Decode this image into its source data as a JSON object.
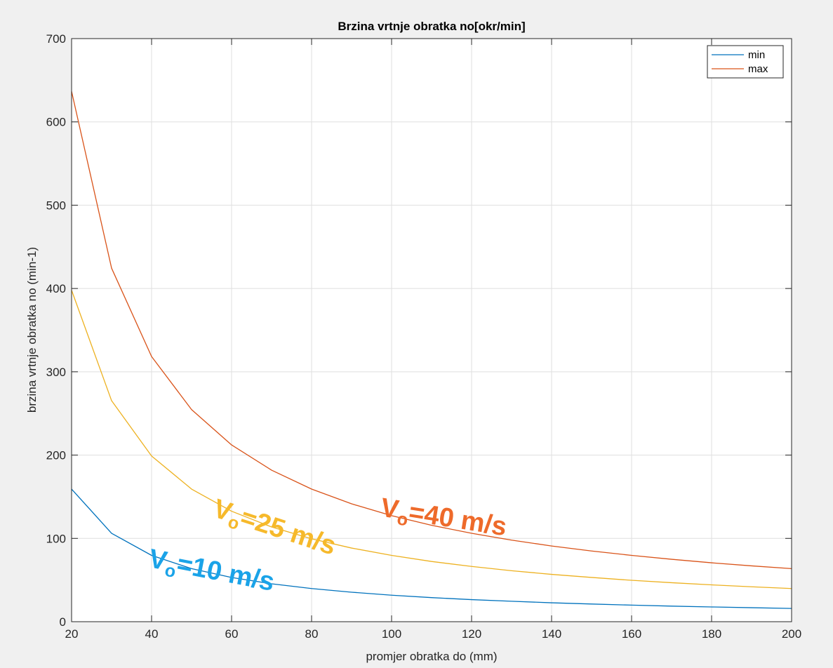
{
  "chart_data": {
    "type": "line",
    "title": "Brzina vrtnje obratka no[okr/min]",
    "xlabel": "promjer obratka do (mm)",
    "ylabel": "brzina vrtnje obratka no (min-1)",
    "xlim": [
      20,
      200
    ],
    "ylim": [
      0,
      700
    ],
    "xticks": [
      20,
      40,
      60,
      80,
      100,
      120,
      140,
      160,
      180,
      200
    ],
    "yticks": [
      0,
      100,
      200,
      300,
      400,
      500,
      600,
      700
    ],
    "xtick_labels": [
      "20",
      "40",
      "60",
      "80",
      "100",
      "120",
      "140",
      "160",
      "180",
      "200"
    ],
    "ytick_labels": [
      "0",
      "100",
      "200",
      "300",
      "400",
      "500",
      "600",
      "700"
    ],
    "grid": true,
    "legend_position": "top-right",
    "x": [
      20,
      30,
      40,
      50,
      60,
      70,
      80,
      90,
      100,
      110,
      120,
      130,
      140,
      150,
      160,
      170,
      180,
      190,
      200
    ],
    "series": [
      {
        "name": "min",
        "color": "#0072BD",
        "values": [
          159.2,
          106.1,
          79.6,
          63.7,
          53.1,
          45.5,
          39.8,
          35.4,
          31.8,
          28.9,
          26.5,
          24.5,
          22.7,
          21.2,
          19.9,
          18.7,
          17.7,
          16.8,
          15.9
        ]
      },
      {
        "name": "max",
        "color": "#D95319",
        "values": [
          636.6,
          424.4,
          318.3,
          254.6,
          212.2,
          181.9,
          159.2,
          141.5,
          127.3,
          115.7,
          106.1,
          97.9,
          90.9,
          84.9,
          79.6,
          74.9,
          70.7,
          67.0,
          63.7
        ]
      },
      {
        "color": "#EDB120",
        "values": [
          397.9,
          265.3,
          198.9,
          159.2,
          132.6,
          113.7,
          99.5,
          88.4,
          79.6,
          72.3,
          66.3,
          61.2,
          56.8,
          53.1,
          49.7,
          46.8,
          44.2,
          41.9,
          39.8
        ]
      }
    ],
    "annotations": [
      {
        "prefix": "V",
        "subscript": "o",
        "text": "=10 m/s",
        "color": "#1aa3e8",
        "x": 39,
        "y": 66,
        "angle": 11
      },
      {
        "prefix": "V",
        "subscript": "o",
        "text": "=25 m/s",
        "color": "#f6b92b",
        "x": 55,
        "y": 127,
        "angle": 18
      },
      {
        "prefix": "V",
        "subscript": "o",
        "text": "=40 m/s",
        "color": "#ee6a2a",
        "x": 97,
        "y": 127,
        "angle": 9
      }
    ]
  }
}
